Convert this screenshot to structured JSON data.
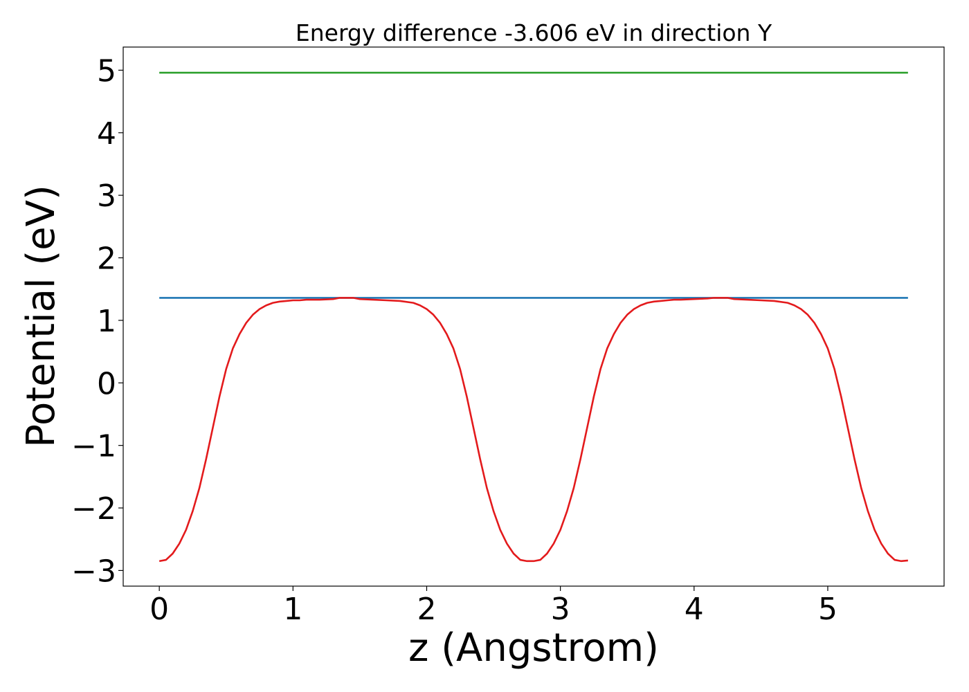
{
  "chart_data": {
    "type": "line",
    "title": "Energy difference -3.606 eV in direction Y",
    "xlabel": "z (Angstrom)",
    "ylabel": "Potential (eV)",
    "xlim": [
      -0.27,
      5.87
    ],
    "ylim": [
      -3.25,
      5.37
    ],
    "xticks": [
      0,
      1,
      2,
      3,
      4,
      5
    ],
    "xtick_labels": [
      "0",
      "1",
      "2",
      "3",
      "4",
      "5"
    ],
    "yticks": [
      5,
      4,
      3,
      2,
      1,
      0,
      -1,
      -2,
      -3
    ],
    "ytick_labels": [
      "5",
      "4",
      "3",
      "2",
      "1",
      "0",
      "−1",
      "−2",
      "−3"
    ],
    "grid": false,
    "legend": "none",
    "series": [
      {
        "color": "#2ca02c",
        "x": [
          0,
          5.6
        ],
        "y": [
          4.96,
          4.96
        ]
      },
      {
        "color": "#1f77b4",
        "x": [
          0,
          5.6
        ],
        "y": [
          1.36,
          1.36
        ]
      },
      {
        "color": "#e31a1c",
        "x": [
          0,
          0.05,
          0.1,
          0.15,
          0.2,
          0.25,
          0.3,
          0.35,
          0.4,
          0.45,
          0.5,
          0.55,
          0.6,
          0.65,
          0.7,
          0.75,
          0.8,
          0.85,
          0.9,
          0.95,
          1.0,
          1.05,
          1.1,
          1.2,
          1.3,
          1.35,
          1.4,
          1.45,
          1.5,
          1.6,
          1.7,
          1.8,
          1.9,
          1.95,
          2.0,
          2.05,
          2.1,
          2.15,
          2.2,
          2.25,
          2.3,
          2.35,
          2.4,
          2.45,
          2.5,
          2.55,
          2.6,
          2.65,
          2.7,
          2.75,
          2.8,
          2.85,
          2.9,
          2.95,
          3.0,
          3.05,
          3.1,
          3.15,
          3.2,
          3.25,
          3.3,
          3.35,
          3.4,
          3.45,
          3.5,
          3.55,
          3.6,
          3.65,
          3.7,
          3.75,
          3.8,
          3.85,
          3.9,
          4.0,
          4.1,
          4.15,
          4.2,
          4.25,
          4.3,
          4.4,
          4.5,
          4.6,
          4.7,
          4.75,
          4.8,
          4.85,
          4.9,
          4.95,
          5.0,
          5.05,
          5.1,
          5.15,
          5.2,
          5.25,
          5.3,
          5.35,
          5.4,
          5.45,
          5.5,
          5.55,
          5.6
        ],
        "y": [
          -2.85,
          -2.83,
          -2.73,
          -2.57,
          -2.35,
          -2.05,
          -1.68,
          -1.22,
          -0.72,
          -0.22,
          0.22,
          0.55,
          0.78,
          0.96,
          1.09,
          1.18,
          1.24,
          1.28,
          1.3,
          1.31,
          1.32,
          1.32,
          1.33,
          1.33,
          1.34,
          1.36,
          1.36,
          1.36,
          1.34,
          1.33,
          1.32,
          1.31,
          1.28,
          1.24,
          1.18,
          1.09,
          0.96,
          0.78,
          0.55,
          0.22,
          -0.22,
          -0.72,
          -1.22,
          -1.68,
          -2.05,
          -2.35,
          -2.57,
          -2.73,
          -2.83,
          -2.85,
          -2.85,
          -2.83,
          -2.73,
          -2.57,
          -2.35,
          -2.05,
          -1.68,
          -1.22,
          -0.72,
          -0.22,
          0.22,
          0.55,
          0.78,
          0.96,
          1.09,
          1.18,
          1.24,
          1.28,
          1.3,
          1.31,
          1.32,
          1.33,
          1.33,
          1.34,
          1.35,
          1.36,
          1.36,
          1.36,
          1.34,
          1.33,
          1.32,
          1.31,
          1.28,
          1.24,
          1.18,
          1.09,
          0.96,
          0.78,
          0.55,
          0.22,
          -0.22,
          -0.72,
          -1.22,
          -1.68,
          -2.05,
          -2.35,
          -2.57,
          -2.73,
          -2.83,
          -2.85,
          -2.84
        ]
      }
    ]
  }
}
